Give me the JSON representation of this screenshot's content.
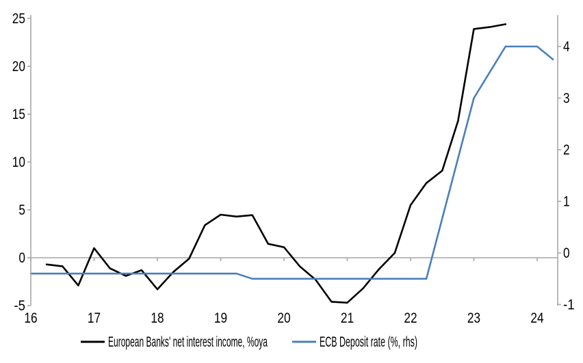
{
  "chart_data": {
    "type": "line",
    "title": "",
    "x_axis": {
      "ticks": [
        16,
        17,
        18,
        19,
        20,
        21,
        22,
        23,
        24
      ],
      "range": [
        16,
        24.3
      ],
      "tick_label_position": "bottom",
      "tick_marks_on": "zero-line"
    },
    "y_axis_left": {
      "ticks": [
        25,
        20,
        15,
        10,
        5,
        0,
        -5
      ],
      "range": [
        -5.4,
        25.5
      ],
      "label": ""
    },
    "y_axis_right": {
      "ticks": [
        4,
        3,
        2,
        1,
        0,
        -1
      ],
      "range": [
        -1.05,
        4.6
      ],
      "label": ""
    },
    "grid": "zero-line-only",
    "series": [
      {
        "name": "European Banks' net interest income, %oya",
        "axis": "left",
        "color": "#000000",
        "x": [
          16.25,
          16.5,
          16.75,
          17.0,
          17.25,
          17.5,
          17.75,
          18.0,
          18.25,
          18.5,
          18.75,
          19.0,
          19.25,
          19.5,
          19.75,
          20.0,
          20.25,
          20.5,
          20.75,
          21.0,
          21.25,
          21.5,
          21.75,
          22.0,
          22.25,
          22.5,
          22.75,
          23.0,
          23.25,
          23.5
        ],
        "values": [
          -0.7,
          -0.9,
          -2.9,
          1.0,
          -1.1,
          -1.9,
          -1.3,
          -3.3,
          -1.5,
          -0.1,
          3.4,
          4.5,
          4.3,
          4.45,
          1.45,
          1.1,
          -0.9,
          -2.3,
          -4.6,
          -4.7,
          -3.2,
          -1.2,
          0.5,
          5.5,
          7.8,
          9.1,
          14.3,
          23.9,
          24.1,
          24.4
        ]
      },
      {
        "name": "ECB Deposit rate (%, rhs)",
        "axis": "right",
        "color": "#4a7ebc",
        "x": [
          16.0,
          19.25,
          19.5,
          22.25,
          23.0,
          23.5,
          24.0,
          24.25
        ],
        "values": [
          -0.4,
          -0.4,
          -0.5,
          -0.5,
          3.0,
          4.0,
          4.0,
          3.75
        ]
      }
    ],
    "legend": {
      "position": "bottom",
      "entries": [
        "European Banks' net interest income, %oya",
        "ECB Deposit rate (%, rhs)"
      ]
    },
    "colors": {
      "axis_gray": "#a6a6a6",
      "series_black": "#000000",
      "series_blue": "#4a7ebc",
      "text": "#000000",
      "background": "#ffffff"
    }
  }
}
